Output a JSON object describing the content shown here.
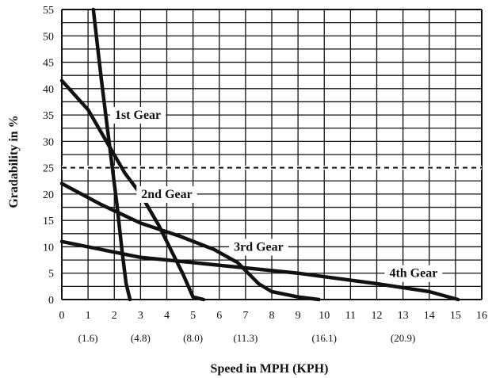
{
  "chart_data": {
    "type": "line",
    "xlabel": "Speed in MPH (KPH)",
    "ylabel": "Gradability in %",
    "xlim": [
      0,
      16
    ],
    "ylim": [
      0,
      55
    ],
    "x_ticks": [
      "0",
      "1",
      "2",
      "3",
      "4",
      "5",
      "6",
      "7",
      "8",
      "9",
      "10",
      "11",
      "12",
      "13",
      "14",
      "15",
      "16"
    ],
    "y_ticks": [
      "0",
      "5",
      "10",
      "15",
      "20",
      "25",
      "30",
      "35",
      "40",
      "45",
      "50",
      "55"
    ],
    "kph_labels": [
      {
        "mph": 1,
        "text": "(1.6)"
      },
      {
        "mph": 3,
        "text": "(4.8)"
      },
      {
        "mph": 5,
        "text": "(8.0)"
      },
      {
        "mph": 7,
        "text": "(11.3)"
      },
      {
        "mph": 10,
        "text": "(16.1)"
      },
      {
        "mph": 13,
        "text": "(20.9)"
      }
    ],
    "grid": true,
    "reference_line": {
      "y": 25,
      "style": "dashed"
    },
    "series": [
      {
        "name": "1st Gear",
        "x": [
          1.2,
          1.5,
          1.8,
          2.1,
          2.3,
          2.45,
          2.6
        ],
        "y": [
          55,
          42,
          30,
          18,
          9,
          3,
          0
        ],
        "label_at": {
          "x": 2.9,
          "y": 35
        }
      },
      {
        "name": "2nd Gear",
        "x": [
          0,
          1.0,
          1.7,
          2.4,
          3.0,
          3.7,
          4.2,
          4.6,
          5.0,
          5.4
        ],
        "y": [
          41.5,
          36,
          30,
          24,
          20,
          14,
          9,
          5,
          0.5,
          0
        ],
        "label_at": {
          "x": 4.0,
          "y": 20
        }
      },
      {
        "name": "3rd Gear",
        "x": [
          0,
          1.5,
          3.0,
          4.5,
          5.8,
          6.7,
          7.1,
          7.5,
          8.0,
          9.0,
          9.8
        ],
        "y": [
          22,
          18,
          14.5,
          12,
          9.5,
          7,
          5,
          3,
          1.5,
          0.5,
          0
        ],
        "label_at": {
          "x": 7.5,
          "y": 10
        }
      },
      {
        "name": "4th Gear",
        "x": [
          0,
          3,
          6,
          9,
          12,
          14,
          15.1
        ],
        "y": [
          11,
          8,
          6.5,
          5,
          3,
          1.5,
          0
        ],
        "label_at": {
          "x": 13.4,
          "y": 5
        }
      }
    ]
  }
}
